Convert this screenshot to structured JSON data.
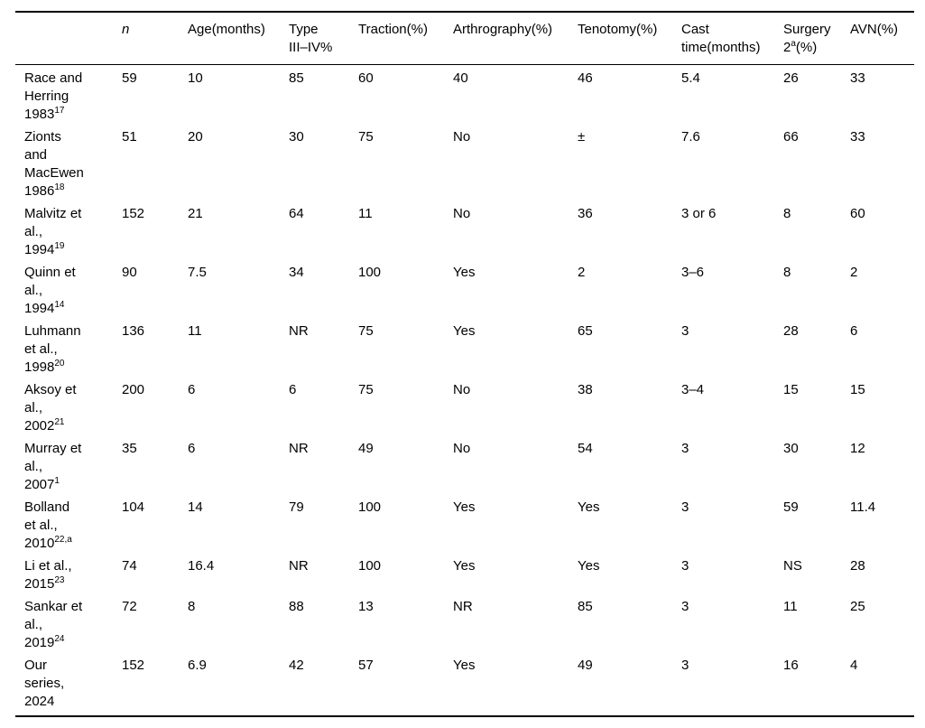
{
  "table": {
    "columns": [
      {
        "id": "study",
        "lines": [
          ""
        ]
      },
      {
        "id": "n",
        "lines": [
          "n"
        ],
        "italic": true
      },
      {
        "id": "age",
        "lines": [
          "Age(months)"
        ]
      },
      {
        "id": "type",
        "lines": [
          "Type",
          "III–IV%"
        ]
      },
      {
        "id": "traction",
        "lines": [
          "Traction(%)"
        ]
      },
      {
        "id": "arthrography",
        "lines": [
          "Arthrography(%)"
        ]
      },
      {
        "id": "tenotomy",
        "lines": [
          "Tenotomy(%)"
        ]
      },
      {
        "id": "cast-time",
        "lines": [
          "Cast",
          "time(months)"
        ]
      },
      {
        "id": "surgery2",
        "lines": [
          "Surgery",
          {
            "pre": "2",
            "sup": "a",
            "post": "(%)"
          }
        ]
      },
      {
        "id": "avn",
        "lines": [
          "AVN(%)"
        ]
      }
    ],
    "rows": [
      {
        "study_lines": [
          "Race and",
          "Herring",
          "1983"
        ],
        "study_sup": "17",
        "values": [
          "59",
          "10",
          "85",
          "60",
          "40",
          "46",
          "5.4",
          "26",
          "33"
        ]
      },
      {
        "study_lines": [
          "Zionts",
          "and",
          "MacEwen",
          "1986"
        ],
        "study_sup": "18",
        "values": [
          "51",
          "20",
          "30",
          "75",
          "No",
          "±",
          "7.6",
          "66",
          "33"
        ]
      },
      {
        "study_lines": [
          "Malvitz et",
          "al.,",
          "1994"
        ],
        "study_sup": "19",
        "values": [
          "152",
          "21",
          "64",
          "11",
          "No",
          "36",
          "3 or 6",
          "8",
          "60"
        ]
      },
      {
        "study_lines": [
          "Quinn et",
          "al.,",
          "1994"
        ],
        "study_sup": "14",
        "values": [
          "90",
          "7.5",
          "34",
          "100",
          "Yes",
          "2",
          "3–6",
          "8",
          "2"
        ]
      },
      {
        "study_lines": [
          "Luhmann",
          "et al.,",
          "1998"
        ],
        "study_sup": "20",
        "values": [
          "136",
          "11",
          "NR",
          "75",
          "Yes",
          "65",
          "3",
          "28",
          "6"
        ]
      },
      {
        "study_lines": [
          "Aksoy et",
          "al.,",
          "2002"
        ],
        "study_sup": "21",
        "values": [
          "200",
          "6",
          "6",
          "75",
          "No",
          "38",
          "3–4",
          "15",
          "15"
        ]
      },
      {
        "study_lines": [
          "Murray et",
          "al.,",
          "2007"
        ],
        "study_sup": "1",
        "values": [
          "35",
          "6",
          "NR",
          "49",
          "No",
          "54",
          "3",
          "30",
          "12"
        ]
      },
      {
        "study_lines": [
          "Bolland",
          "et al.,",
          "2010"
        ],
        "study_sup": "22,a",
        "values": [
          "104",
          "14",
          "79",
          "100",
          "Yes",
          "Yes",
          "3",
          "59",
          "11.4"
        ]
      },
      {
        "study_lines": [
          "Li et al.,",
          "2015"
        ],
        "study_sup": "23",
        "values": [
          "74",
          "16.4",
          "NR",
          "100",
          "Yes",
          "Yes",
          "3",
          "NS",
          "28"
        ]
      },
      {
        "study_lines": [
          "Sankar et",
          "al.,",
          "2019"
        ],
        "study_sup": "24",
        "values": [
          "72",
          "8",
          "88",
          "13",
          "NR",
          "85",
          "3",
          "11",
          "25"
        ]
      },
      {
        "study_lines": [
          "Our",
          "series,",
          "2024"
        ],
        "study_sup": "",
        "values": [
          "152",
          "6.9",
          "42",
          "57",
          "Yes",
          "49",
          "3",
          "16",
          "4"
        ]
      }
    ]
  },
  "colors": {
    "text": "#000000",
    "background": "#ffffff",
    "rule": "#000000"
  }
}
